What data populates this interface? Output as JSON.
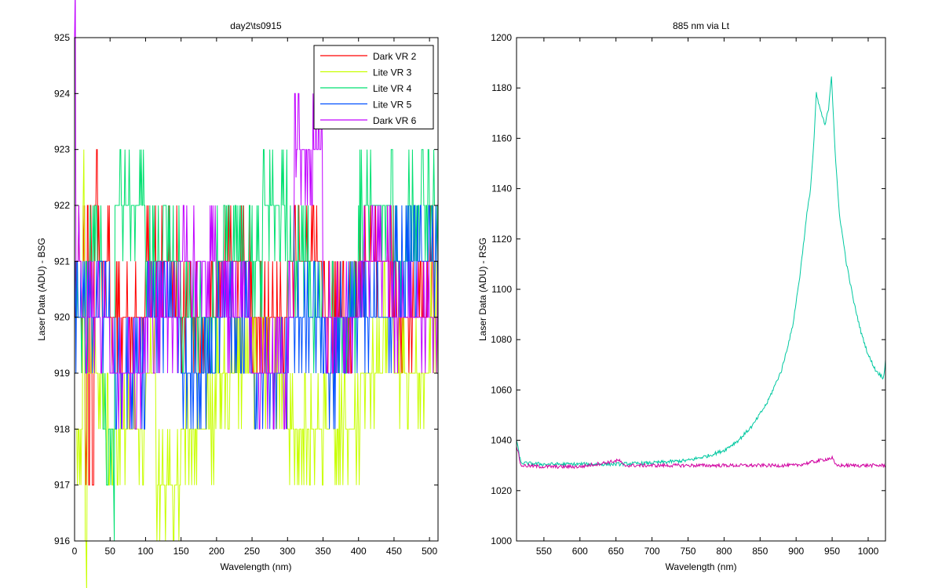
{
  "figure": {
    "background": "#ffffff"
  },
  "chart_data": [
    {
      "type": "line",
      "title": "day2\\ts0915",
      "xlabel": "Wavelength (nm)",
      "ylabel": "Laser Data (ADU) - BSG",
      "xlim": [
        0,
        512
      ],
      "ylim": [
        916,
        925
      ],
      "xticks": [
        0,
        50,
        100,
        150,
        200,
        250,
        300,
        350,
        400,
        450,
        500
      ],
      "yticks": [
        916,
        917,
        918,
        919,
        920,
        921,
        922,
        923,
        924,
        925
      ],
      "grid": false,
      "legend": {
        "placement": "top-right",
        "entries": [
          "Dark VR 2",
          "Lite VR 3",
          "Lite VR 4",
          "Lite VR 5",
          "Dark VR 6"
        ]
      },
      "series": [
        {
          "name": "Dark VR 2",
          "color": "#ff0000",
          "pattern": "noisy-discrete",
          "base": 920,
          "spike_values": [
            921,
            922,
            919,
            918,
            917
          ],
          "points": [
            [
              0,
              921
            ],
            [
              10,
              920
            ],
            [
              12,
              922
            ],
            [
              15,
              918
            ],
            [
              18,
              922
            ],
            [
              20,
              917
            ],
            [
              22,
              922
            ],
            [
              25,
              917
            ],
            [
              28,
              922
            ],
            [
              35,
              921
            ],
            [
              50,
              920
            ],
            [
              100,
              921
            ],
            [
              150,
              920
            ],
            [
              200,
              921
            ],
            [
              250,
              920
            ],
            [
              300,
              921
            ],
            [
              350,
              920
            ],
            [
              400,
              921
            ],
            [
              450,
              920
            ],
            [
              500,
              921
            ],
            [
              512,
              920
            ]
          ]
        },
        {
          "name": "Lite VR 3",
          "color": "#c8ff00",
          "pattern": "noisy-discrete",
          "base": 918,
          "points": [
            [
              0,
              918
            ],
            [
              12,
              922
            ],
            [
              15,
              916
            ],
            [
              18,
              919
            ],
            [
              40,
              918
            ],
            [
              100,
              918.5
            ],
            [
              115,
              917
            ],
            [
              150,
              918
            ],
            [
              200,
              919
            ],
            [
              300,
              918
            ],
            [
              400,
              918
            ],
            [
              404,
              919
            ],
            [
              430,
              919
            ],
            [
              435,
              920
            ],
            [
              450,
              919
            ],
            [
              500,
              920
            ],
            [
              512,
              919
            ]
          ]
        },
        {
          "name": "Lite VR 4",
          "color": "#00e070",
          "pattern": "noisy-discrete",
          "base": 920,
          "points": [
            [
              0,
              920
            ],
            [
              20,
              921
            ],
            [
              40,
              918
            ],
            [
              55,
              917
            ],
            [
              57,
              922
            ],
            [
              70,
              922
            ],
            [
              100,
              921
            ],
            [
              150,
              920
            ],
            [
              200,
              921
            ],
            [
              265,
              922
            ],
            [
              300,
              921
            ],
            [
              330,
              920
            ],
            [
              400,
              922
            ],
            [
              450,
              921
            ],
            [
              470,
              922
            ],
            [
              500,
              922
            ],
            [
              512,
              921
            ]
          ]
        },
        {
          "name": "Lite VR 5",
          "color": "#0050ff",
          "pattern": "noisy-discrete",
          "base": 920,
          "points": [
            [
              0,
              920
            ],
            [
              50,
              919
            ],
            [
              100,
              920
            ],
            [
              150,
              919
            ],
            [
              200,
              920
            ],
            [
              250,
              919
            ],
            [
              300,
              920
            ],
            [
              350,
              919
            ],
            [
              370,
              920
            ],
            [
              400,
              920
            ],
            [
              450,
              921
            ],
            [
              512,
              920
            ]
          ]
        },
        {
          "name": "Dark VR 6",
          "color": "#c000ff",
          "pattern": "noisy-discrete",
          "base": 920,
          "points": [
            [
              0,
              925
            ],
            [
              2,
              921
            ],
            [
              10,
              920
            ],
            [
              50,
              919
            ],
            [
              100,
              920
            ],
            [
              150,
              921
            ],
            [
              200,
              920
            ],
            [
              250,
              919
            ],
            [
              300,
              920
            ],
            [
              310,
              924
            ],
            [
              312,
              922.5
            ],
            [
              350,
              920
            ],
            [
              400,
              921
            ],
            [
              450,
              920
            ],
            [
              512,
              921
            ]
          ]
        }
      ]
    },
    {
      "type": "line",
      "title": "885 nm via Lt",
      "xlabel": "Wavelength (nm)",
      "ylabel": "Laser Data (ADU) - RSG",
      "xlim": [
        512,
        1024
      ],
      "ylim": [
        1000,
        1200
      ],
      "xticks": [
        550,
        600,
        650,
        700,
        750,
        800,
        850,
        900,
        950,
        1000
      ],
      "yticks": [
        1000,
        1020,
        1040,
        1060,
        1080,
        1100,
        1120,
        1140,
        1160,
        1180,
        1200
      ],
      "grid": false,
      "series": [
        {
          "name": "",
          "color": "#00c8a0",
          "points": [
            [
              512,
              1040
            ],
            [
              518,
              1031
            ],
            [
              550,
              1030.5
            ],
            [
              600,
              1030.5
            ],
            [
              650,
              1030.5
            ],
            [
              700,
              1031
            ],
            [
              750,
              1032
            ],
            [
              780,
              1034
            ],
            [
              800,
              1036
            ],
            [
              820,
              1040
            ],
            [
              840,
              1046
            ],
            [
              860,
              1055
            ],
            [
              880,
              1068
            ],
            [
              895,
              1085
            ],
            [
              905,
              1105
            ],
            [
              915,
              1130
            ],
            [
              920,
              1140
            ],
            [
              925,
              1160
            ],
            [
              928,
              1178
            ],
            [
              930,
              1175
            ],
            [
              935,
              1170
            ],
            [
              940,
              1165
            ],
            [
              945,
              1172
            ],
            [
              949,
              1185
            ],
            [
              955,
              1150
            ],
            [
              960,
              1130
            ],
            [
              970,
              1110
            ],
            [
              980,
              1095
            ],
            [
              990,
              1083
            ],
            [
              1000,
              1074
            ],
            [
              1010,
              1068
            ],
            [
              1020,
              1065
            ],
            [
              1022,
              1066
            ],
            [
              1024,
              1072
            ]
          ]
        },
        {
          "name": "",
          "color": "#d000a0",
          "points": [
            [
              512,
              1038
            ],
            [
              518,
              1030
            ],
            [
              550,
              1029.5
            ],
            [
              600,
              1029.5
            ],
            [
              655,
              1032
            ],
            [
              660,
              1030
            ],
            [
              700,
              1030
            ],
            [
              800,
              1030
            ],
            [
              900,
              1030
            ],
            [
              950,
              1033
            ],
            [
              955,
              1030
            ],
            [
              1000,
              1030
            ],
            [
              1024,
              1030
            ]
          ]
        }
      ]
    }
  ]
}
